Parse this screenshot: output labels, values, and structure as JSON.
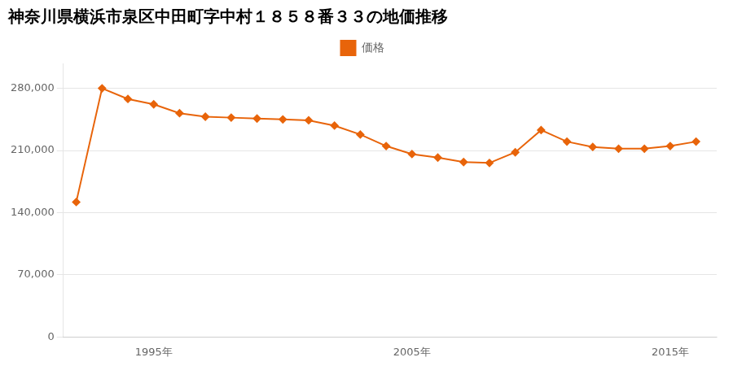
{
  "chart_data": {
    "type": "line",
    "title": "神奈川県横浜市泉区中田町字中村１８５８番３３の地価推移",
    "series": [
      {
        "name": "価格",
        "color": "#E8640A",
        "marker": "diamond",
        "line_style": "solid",
        "values": [
          152000,
          280000,
          268000,
          262000,
          252000,
          248000,
          247000,
          246000,
          245000,
          244000,
          238000,
          228000,
          215000,
          206000,
          202000,
          197000,
          196000,
          208000,
          233000,
          220000,
          214000,
          212000,
          212000,
          215000,
          220000
        ]
      }
    ],
    "x": [
      1992,
      1993,
      1994,
      1995,
      1996,
      1997,
      1998,
      1999,
      2000,
      2001,
      2002,
      2003,
      2004,
      2005,
      2006,
      2007,
      2008,
      2009,
      2010,
      2011,
      2012,
      2013,
      2014,
      2015,
      2016
    ],
    "xlim": [
      1991.5,
      2016.8
    ],
    "xticks": [
      {
        "value": 1995,
        "label": "1995年"
      },
      {
        "value": 2005,
        "label": "2005年"
      },
      {
        "value": 2015,
        "label": "2015年"
      }
    ],
    "ylim": [
      0,
      308000
    ],
    "yticks": [
      0,
      {
        "value": 70000,
        "label": "70,000"
      },
      {
        "value": 140000,
        "label": "140,000"
      },
      {
        "value": 210000,
        "label": "210,000"
      },
      {
        "value": 280000,
        "label": "280,000"
      }
    ],
    "grid": "y",
    "legend": "top"
  }
}
